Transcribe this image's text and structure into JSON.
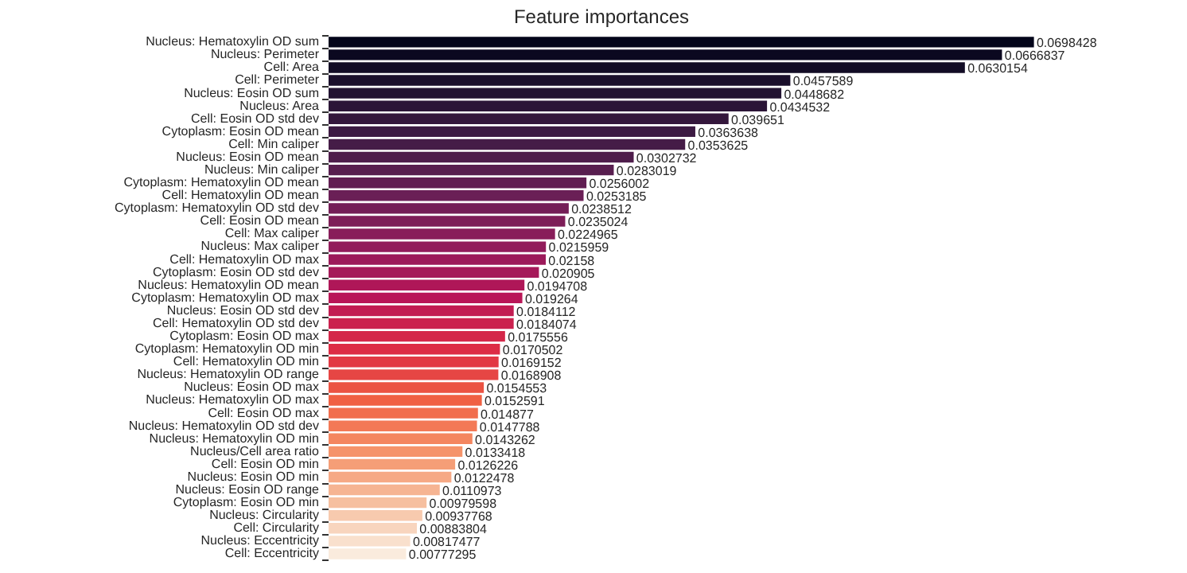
{
  "chart_data": {
    "type": "bar",
    "orientation": "horizontal",
    "title": "Feature importances",
    "data_labels": true,
    "grid": false,
    "legend": false,
    "tick_labels": "y",
    "categories": [
      "Nucleus: Hematoxylin OD sum",
      "Nucleus: Perimeter",
      "Cell: Area",
      "Cell: Perimeter",
      "Nucleus: Eosin OD sum",
      "Nucleus: Area",
      "Cell: Eosin OD std dev",
      "Cytoplasm: Eosin OD mean",
      "Cell: Min caliper",
      "Nucleus: Eosin OD mean",
      "Nucleus: Min caliper",
      "Cytoplasm: Hematoxylin OD mean",
      "Cell: Hematoxylin OD mean",
      "Cytoplasm: Hematoxylin OD std dev",
      "Cell: Eosin OD mean",
      "Cell: Max caliper",
      "Nucleus: Max caliper",
      "Cell: Hematoxylin OD max",
      "Cytoplasm: Eosin OD std dev",
      "Nucleus: Hematoxylin OD mean",
      "Cytoplasm: Hematoxylin OD max",
      "Nucleus: Eosin OD std dev",
      "Cell: Hematoxylin OD std dev",
      "Cytoplasm: Eosin OD max",
      "Cytoplasm: Hematoxylin OD min",
      "Cell: Hematoxylin OD min",
      "Nucleus: Hematoxylin OD range",
      "Nucleus: Eosin OD max",
      "Nucleus: Hematoxylin OD max",
      "Cell: Eosin OD max",
      "Nucleus: Hematoxylin OD std dev",
      "Nucleus: Hematoxylin OD min",
      "Nucleus/Cell area ratio",
      "Cell: Eosin OD min",
      "Nucleus: Eosin OD min",
      "Nucleus: Eosin OD range",
      "Cytoplasm: Eosin OD min",
      "Nucleus: Circularity",
      "Cell: Circularity",
      "Nucleus: Eccentricity",
      "Cell: Eccentricity"
    ],
    "values": [
      0.0698428,
      0.0666837,
      0.0630154,
      0.0457589,
      0.0448682,
      0.0434532,
      0.039651,
      0.0363638,
      0.0353625,
      0.0302732,
      0.0283019,
      0.0256002,
      0.0253185,
      0.0238512,
      0.0235024,
      0.0224965,
      0.0215959,
      0.02158,
      0.020905,
      0.0194708,
      0.019264,
      0.0184112,
      0.0184074,
      0.0175556,
      0.0170502,
      0.0169152,
      0.0168908,
      0.0154553,
      0.0152591,
      0.014877,
      0.0147788,
      0.0143262,
      0.0133418,
      0.0126226,
      0.0122478,
      0.0110973,
      0.00979598,
      0.00937768,
      0.00883804,
      0.00817477,
      0.00777295
    ],
    "colors": [
      "#03051a",
      "#0b0820",
      "#120c25",
      "#1a0f2b",
      "#221331",
      "#2b1537",
      "#34173c",
      "#3c1a42",
      "#451c47",
      "#4e1d4b",
      "#581e4f",
      "#611e52",
      "#6a1f56",
      "#741e57",
      "#7e1e58",
      "#881d5a",
      "#921c5b",
      "#9c1a5a",
      "#a51959",
      "#af1758",
      "#b91657",
      "#c21c52",
      "#cb214e",
      "#d42749",
      "#dd2c45",
      "#e23944",
      "#e64644",
      "#eb5343",
      "#f06043",
      "#f16d4d",
      "#f37956",
      "#f48660",
      "#f5936a",
      "#f59e77",
      "#f6a985",
      "#f6b492",
      "#f6bf9f",
      "#f7caae",
      "#f8d5be",
      "#f9e0cd",
      "#faebdd"
    ]
  }
}
